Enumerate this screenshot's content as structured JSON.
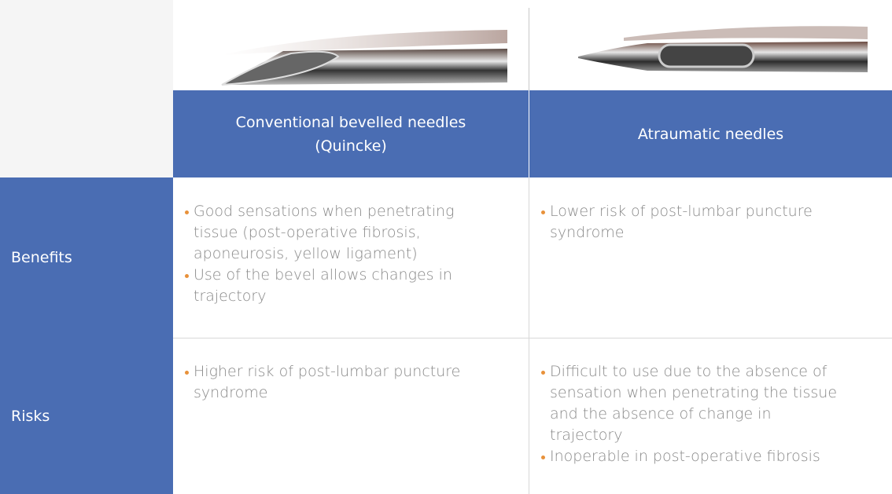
{
  "table": {
    "columns": [
      "Conventional bevelled needles (Quincke)",
      "Atraumatic needles"
    ],
    "rows": [
      {
        "label": "Benefits",
        "cells": [
          [
            "Good sensations when penetrating tissue (post-operative fibrosis, aponeurosis, yellow ligament)",
            "Use of the bevel allows changes in trajectory"
          ],
          [
            "Lower risk of post-lumbar puncture syndrome"
          ]
        ]
      },
      {
        "label": "Risks",
        "cells": [
          [
            "Higher risk of post-lumbar puncture syndrome"
          ],
          [
            "Difficult to use due to the absence of sensation when penetrating the tissue and the absence of change in trajectory",
            "Inoperable in post-operative fibrosis"
          ]
        ]
      }
    ]
  }
}
